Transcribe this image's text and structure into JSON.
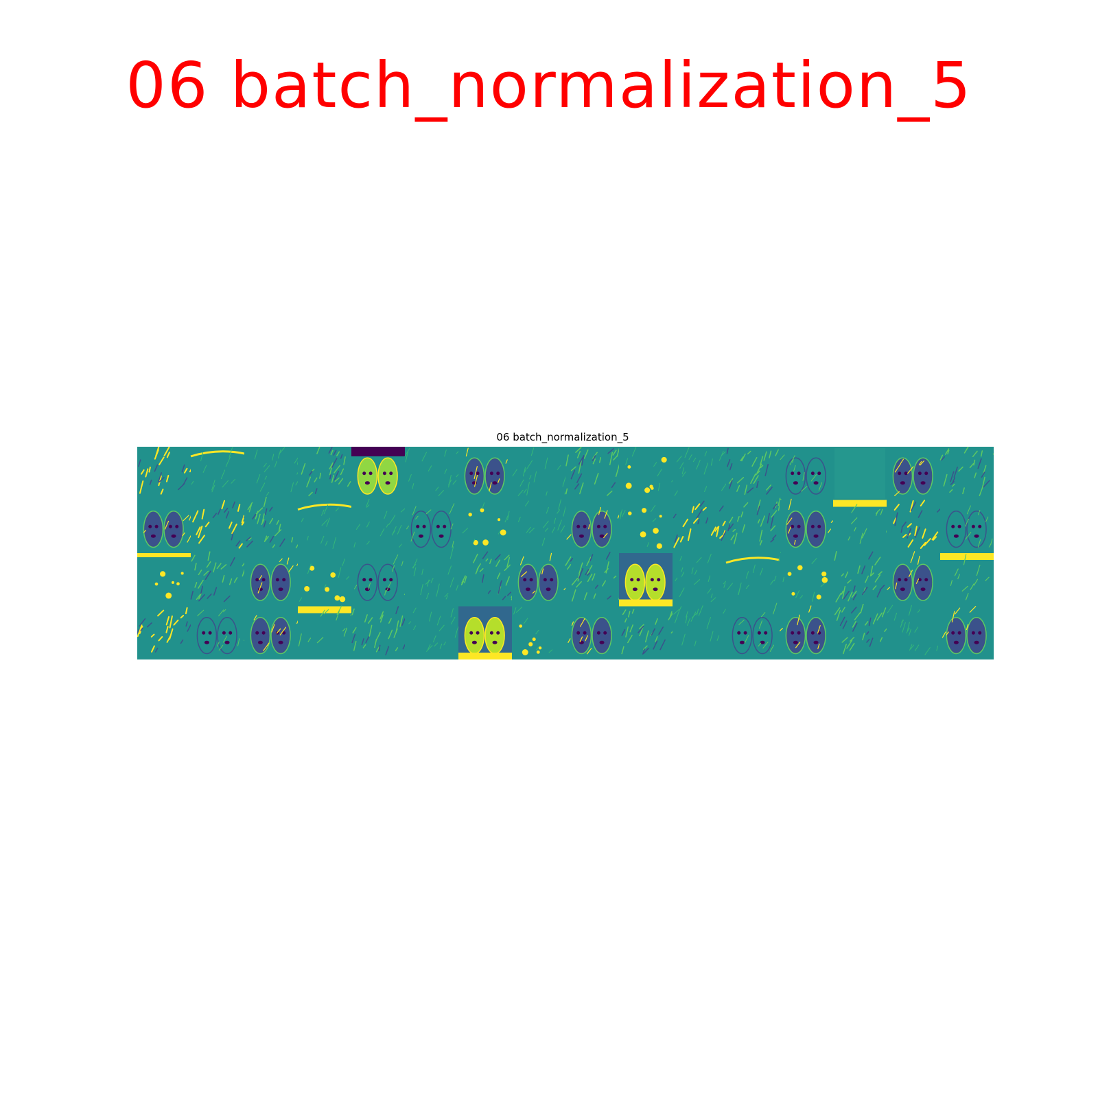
{
  "image_title": "06 batch_normalization_5",
  "figure_title": "06 batch_normalization_5",
  "grid": {
    "rows": 4,
    "cols": 16,
    "description_alt": "feature-map-grid",
    "colors": {
      "background": "#21918c",
      "dark": "#3b528b",
      "darkest": "#440154",
      "bright": "#fde725",
      "mid": "#5ec962"
    },
    "tiles": [
      {
        "row": 0,
        "col": 0,
        "style": "edges-yellow"
      },
      {
        "row": 0,
        "col": 1,
        "style": "top-bar"
      },
      {
        "row": 0,
        "col": 2,
        "style": "faint"
      },
      {
        "row": 0,
        "col": 3,
        "style": "edges"
      },
      {
        "row": 0,
        "col": 4,
        "style": "dogs-bright-darktop"
      },
      {
        "row": 0,
        "col": 5,
        "style": "faint"
      },
      {
        "row": 0,
        "col": 6,
        "style": "dogs-dark"
      },
      {
        "row": 0,
        "col": 7,
        "style": "faint"
      },
      {
        "row": 0,
        "col": 8,
        "style": "edges"
      },
      {
        "row": 0,
        "col": 9,
        "style": "spots"
      },
      {
        "row": 0,
        "col": 10,
        "style": "faint"
      },
      {
        "row": 0,
        "col": 11,
        "style": "edges"
      },
      {
        "row": 0,
        "col": 12,
        "style": "dogs-outline"
      },
      {
        "row": 0,
        "col": 13,
        "style": "flat"
      },
      {
        "row": 0,
        "col": 14,
        "style": "dogs-dark"
      },
      {
        "row": 0,
        "col": 15,
        "style": "edges"
      },
      {
        "row": 1,
        "col": 0,
        "style": "dogs-dark"
      },
      {
        "row": 1,
        "col": 1,
        "style": "edges-yellow"
      },
      {
        "row": 1,
        "col": 2,
        "style": "edges"
      },
      {
        "row": 1,
        "col": 3,
        "style": "top-bar"
      },
      {
        "row": 1,
        "col": 4,
        "style": "faint"
      },
      {
        "row": 1,
        "col": 5,
        "style": "dogs-outline"
      },
      {
        "row": 1,
        "col": 6,
        "style": "spots"
      },
      {
        "row": 1,
        "col": 7,
        "style": "faint"
      },
      {
        "row": 1,
        "col": 8,
        "style": "dogs-dark"
      },
      {
        "row": 1,
        "col": 9,
        "style": "spots"
      },
      {
        "row": 1,
        "col": 10,
        "style": "edges-yellow"
      },
      {
        "row": 1,
        "col": 11,
        "style": "edges"
      },
      {
        "row": 1,
        "col": 12,
        "style": "dogs-dark"
      },
      {
        "row": 1,
        "col": 13,
        "style": "yellow-top"
      },
      {
        "row": 1,
        "col": 14,
        "style": "edges-yellow"
      },
      {
        "row": 1,
        "col": 15,
        "style": "dogs-outline"
      },
      {
        "row": 2,
        "col": 0,
        "style": "spots-yellowtop"
      },
      {
        "row": 2,
        "col": 1,
        "style": "edges"
      },
      {
        "row": 2,
        "col": 2,
        "style": "dogs-dark"
      },
      {
        "row": 2,
        "col": 3,
        "style": "spots"
      },
      {
        "row": 2,
        "col": 4,
        "style": "dogs-outline"
      },
      {
        "row": 2,
        "col": 5,
        "style": "faint"
      },
      {
        "row": 2,
        "col": 6,
        "style": "edges"
      },
      {
        "row": 2,
        "col": 7,
        "style": "dogs-dark"
      },
      {
        "row": 2,
        "col": 8,
        "style": "edges"
      },
      {
        "row": 2,
        "col": 9,
        "style": "dogs-bright"
      },
      {
        "row": 2,
        "col": 10,
        "style": "faint"
      },
      {
        "row": 2,
        "col": 11,
        "style": "top-bar"
      },
      {
        "row": 2,
        "col": 12,
        "style": "spots"
      },
      {
        "row": 2,
        "col": 13,
        "style": "edges"
      },
      {
        "row": 2,
        "col": 14,
        "style": "dogs-dark"
      },
      {
        "row": 2,
        "col": 15,
        "style": "yellow-top"
      },
      {
        "row": 3,
        "col": 0,
        "style": "edges-yellow"
      },
      {
        "row": 3,
        "col": 1,
        "style": "dogs-outline"
      },
      {
        "row": 3,
        "col": 2,
        "style": "dogs-dark"
      },
      {
        "row": 3,
        "col": 3,
        "style": "yellow-top"
      },
      {
        "row": 3,
        "col": 4,
        "style": "edges"
      },
      {
        "row": 3,
        "col": 5,
        "style": "faint"
      },
      {
        "row": 3,
        "col": 6,
        "style": "dogs-bright"
      },
      {
        "row": 3,
        "col": 7,
        "style": "spots"
      },
      {
        "row": 3,
        "col": 8,
        "style": "dogs-dark"
      },
      {
        "row": 3,
        "col": 9,
        "style": "edges"
      },
      {
        "row": 3,
        "col": 10,
        "style": "faint"
      },
      {
        "row": 3,
        "col": 11,
        "style": "dogs-outline"
      },
      {
        "row": 3,
        "col": 12,
        "style": "dogs-dark"
      },
      {
        "row": 3,
        "col": 13,
        "style": "edges"
      },
      {
        "row": 3,
        "col": 14,
        "style": "faint"
      },
      {
        "row": 3,
        "col": 15,
        "style": "dogs-dark"
      }
    ]
  }
}
